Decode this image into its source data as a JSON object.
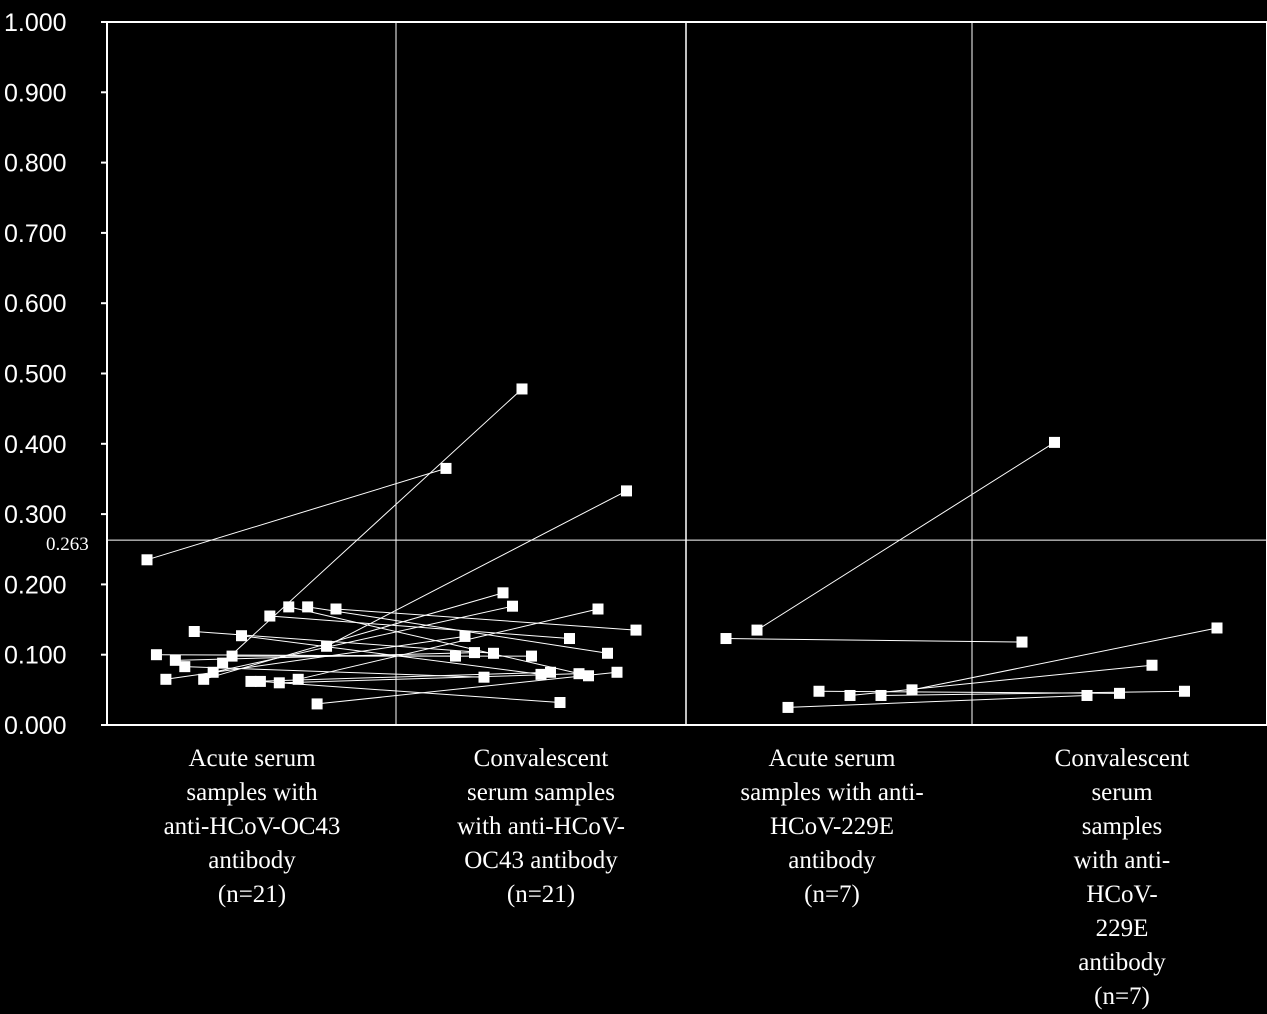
{
  "chart_data": {
    "type": "scatter",
    "ylim": [
      0,
      1
    ],
    "y_ticks": [
      "1.000",
      "0.900",
      "0.800",
      "0.700",
      "0.600",
      "0.500",
      "0.400",
      "0.300",
      "0.200",
      "0.100",
      "0.000"
    ],
    "cutoff": {
      "value": 0.263,
      "label": "0.263"
    },
    "categories": [
      "Acute serum\nsamples with\nanti-HCoV-OC43\nantibody\n(n=21)",
      "Convalescent\nserum samples\nwith anti-HCoV-\nOC43 antibody\n(n=21)",
      "Acute serum\nsamples with anti-\nHCoV-229E\nantibody\n(n=7)",
      "Convalescent\nserum samples\nwith anti-HCoV-\n229E antibody\n(n=7)"
    ],
    "groups": [
      {
        "acute_category": 0,
        "convalescent_category": 1,
        "pairs": [
          [
            0.235,
            0.365
          ],
          [
            0.1,
            0.098
          ],
          [
            0.065,
            0.126
          ],
          [
            0.092,
            0.103
          ],
          [
            0.083,
            0.068
          ],
          [
            0.133,
            0.102
          ],
          [
            0.065,
            0.188
          ],
          [
            0.075,
            0.169
          ],
          [
            0.088,
            0.478
          ],
          [
            0.098,
            0.098
          ],
          [
            0.127,
            0.072
          ],
          [
            0.062,
            0.075
          ],
          [
            0.062,
            0.032
          ],
          [
            0.155,
            0.123
          ],
          [
            0.06,
            0.073
          ],
          [
            0.168,
            0.07
          ],
          [
            0.065,
            0.165
          ],
          [
            0.168,
            0.102
          ],
          [
            0.03,
            0.075
          ],
          [
            0.112,
            0.333
          ],
          [
            0.165,
            0.135
          ]
        ]
      },
      {
        "acute_category": 2,
        "convalescent_category": 3,
        "pairs": [
          [
            0.123,
            0.118
          ],
          [
            0.135,
            0.402
          ],
          [
            0.025,
            0.042
          ],
          [
            0.048,
            0.045
          ],
          [
            0.042,
            0.085
          ],
          [
            0.042,
            0.048
          ],
          [
            0.05,
            0.138
          ]
        ]
      }
    ]
  }
}
